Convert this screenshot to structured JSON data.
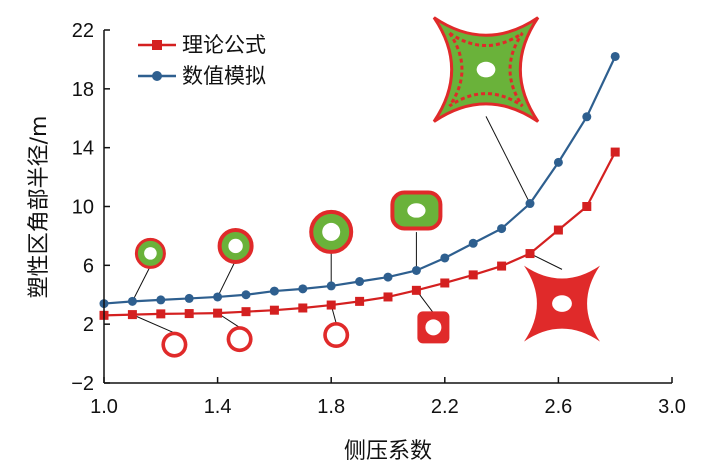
{
  "chart_data": {
    "type": "line",
    "xlabel": "侧压系数",
    "ylabel": "塑性区角部半径/m",
    "xlim": [
      1.0,
      3.0
    ],
    "ylim": [
      -2,
      22
    ],
    "xticks": [
      "1.0",
      "1.4",
      "1.8",
      "2.2",
      "2.6",
      "3.0"
    ],
    "yticks": [
      "−2",
      "2",
      "6",
      "10",
      "14",
      "18",
      "22"
    ],
    "x": [
      1.0,
      1.1,
      1.2,
      1.3,
      1.4,
      1.5,
      1.6,
      1.7,
      1.8,
      1.9,
      2.0,
      2.1,
      2.2,
      2.3,
      2.4,
      2.5,
      2.6,
      2.7,
      2.8
    ],
    "series": [
      {
        "name": "理论公式",
        "color": "#d42020",
        "marker": "square",
        "values": [
          2.6,
          2.65,
          2.7,
          2.72,
          2.75,
          2.85,
          2.95,
          3.1,
          3.3,
          3.55,
          3.85,
          4.3,
          4.8,
          5.35,
          5.95,
          6.8,
          8.4,
          10.0,
          13.7
        ]
      },
      {
        "name": "数值模拟",
        "color": "#2e5f8f",
        "marker": "circle",
        "values": [
          3.4,
          3.55,
          3.65,
          3.75,
          3.85,
          4.0,
          4.25,
          4.4,
          4.6,
          4.9,
          5.2,
          5.65,
          6.5,
          7.5,
          8.5,
          10.2,
          13.0,
          16.1,
          20.2
        ]
      }
    ],
    "grid": false,
    "legend": "top-left",
    "insets": [
      {
        "kind": "plastic-zone",
        "shape": "small-ring",
        "model": "numerical",
        "at_x": 1.1,
        "at_y": 3.55
      },
      {
        "kind": "plastic-zone",
        "shape": "ring",
        "model": "numerical",
        "at_x": 1.4,
        "at_y": 3.85
      },
      {
        "kind": "plastic-zone",
        "shape": "ring",
        "model": "numerical",
        "at_x": 1.8,
        "at_y": 4.6
      },
      {
        "kind": "plastic-zone",
        "shape": "oblate",
        "model": "numerical",
        "at_x": 2.1,
        "at_y": 5.65
      },
      {
        "kind": "plastic-zone",
        "shape": "butterfly",
        "model": "numerical",
        "at_x": 2.5,
        "at_y": 10.2
      },
      {
        "kind": "plastic-zone",
        "shape": "ring",
        "model": "theoretical",
        "at_x": 1.1,
        "at_y": 2.65
      },
      {
        "kind": "plastic-zone",
        "shape": "ring",
        "model": "theoretical",
        "at_x": 1.4,
        "at_y": 2.75
      },
      {
        "kind": "plastic-zone",
        "shape": "ring",
        "model": "theoretical",
        "at_x": 1.8,
        "at_y": 3.3
      },
      {
        "kind": "plastic-zone",
        "shape": "square",
        "model": "theoretical",
        "at_x": 2.1,
        "at_y": 4.3
      },
      {
        "kind": "plastic-zone",
        "shape": "cross",
        "model": "theoretical",
        "at_x": 2.5,
        "at_y": 6.8
      }
    ]
  }
}
